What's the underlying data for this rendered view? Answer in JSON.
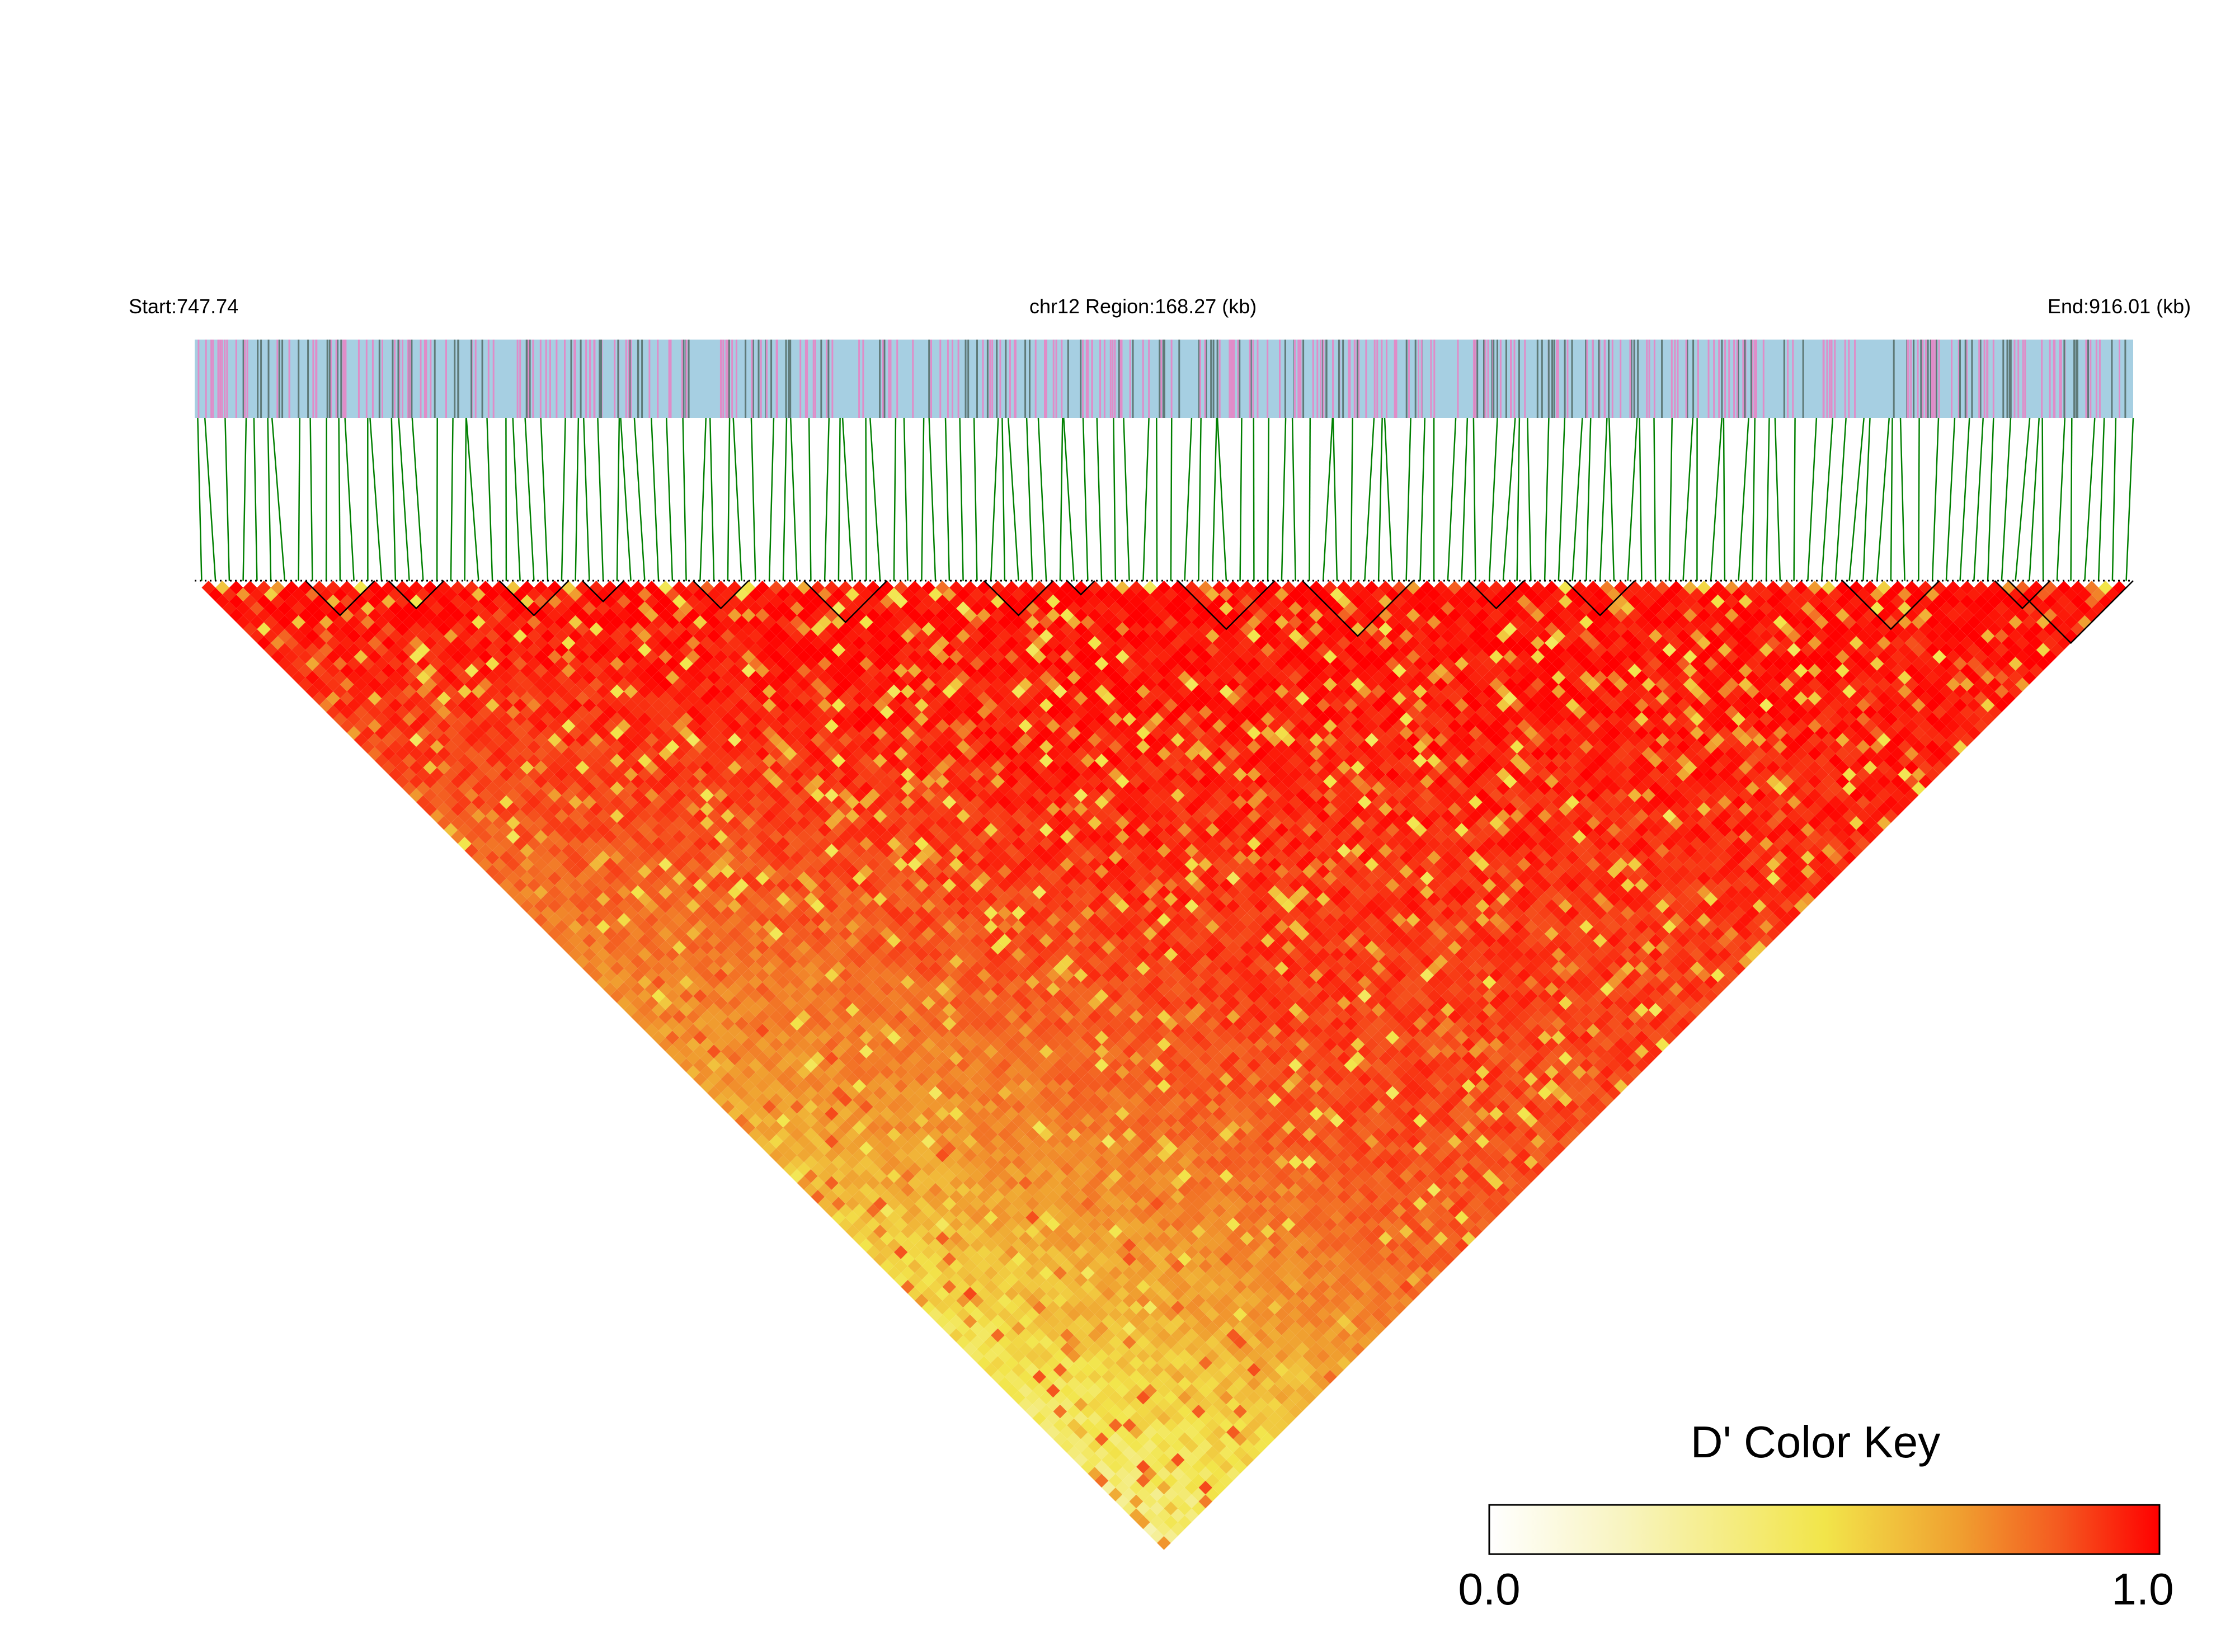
{
  "chart_data": {
    "type": "heatmap",
    "subtype": "LD block (D') triangle",
    "header": {
      "start_label": "Start:747.74",
      "region_label": "chr12 Region:168.27 (kb)",
      "end_label": "End:916.01 (kb)"
    },
    "region": {
      "chromosome": "chr12",
      "start_kb": 747.74,
      "end_kb": 916.01,
      "length_kb": 168.27
    },
    "colors": {
      "track_background": "#a6cfe2",
      "snp_tick_pink": "#e08cc8",
      "snp_tick_gray": "#5f7a78",
      "connector_lines": "#008000",
      "block_outline": "#000000",
      "ld_low": "#ffffff",
      "ld_mid": "#f2e54a",
      "ld_high": "#ff0000"
    },
    "ld_blocks_description": "Haplotype blocks outlined in black along the top edge of the triangle",
    "color_key": {
      "title": "D' Color Key",
      "min_label": "0.0",
      "max_label": "1.0",
      "min": 0.0,
      "max": 1.0,
      "stops": [
        "#ffffff",
        "#f5f0a0",
        "#f2e54a",
        "#f0a030",
        "#f45a20",
        "#ff0000"
      ]
    }
  }
}
